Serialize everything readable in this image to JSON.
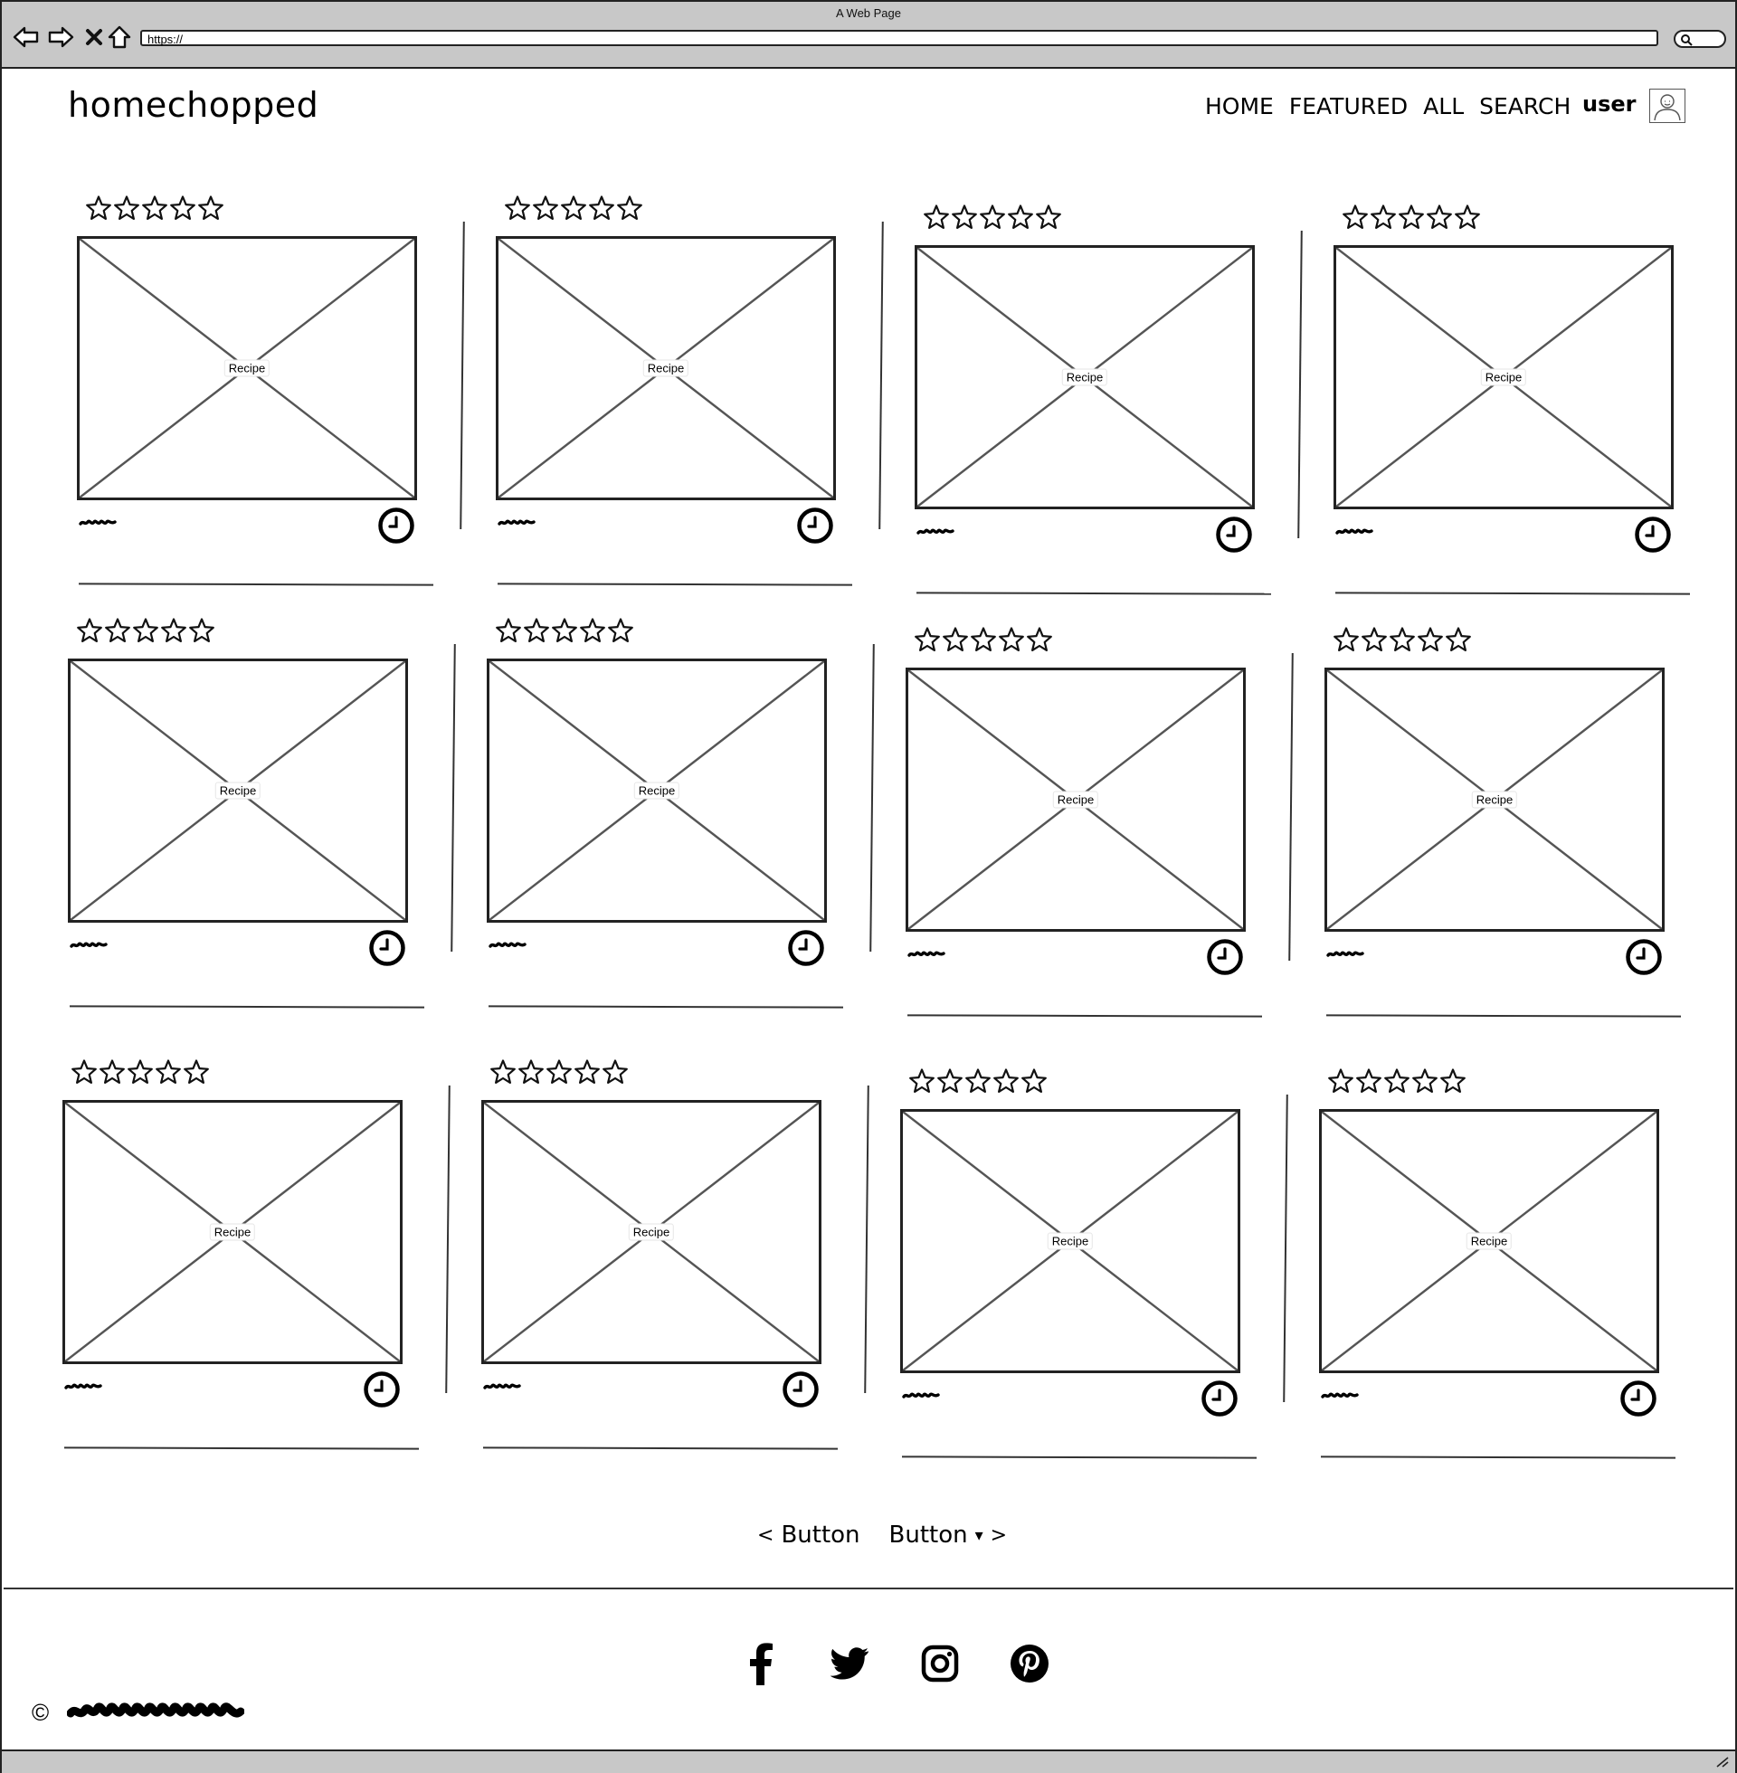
{
  "window": {
    "title": "A Web Page",
    "url": "https://"
  },
  "brand": {
    "name": "homechopped"
  },
  "nav": {
    "items": [
      "HOME",
      "FEATURED",
      "ALL",
      "SEARCH"
    ],
    "user": "user"
  },
  "recipes": [
    {
      "label": "Recipe",
      "rating": 0
    },
    {
      "label": "Recipe",
      "rating": 0
    },
    {
      "label": "Recipe",
      "rating": 0
    },
    {
      "label": "Recipe",
      "rating": 0
    },
    {
      "label": "Recipe",
      "rating": 0
    },
    {
      "label": "Recipe",
      "rating": 0
    },
    {
      "label": "Recipe",
      "rating": 0
    },
    {
      "label": "Recipe",
      "rating": 0
    },
    {
      "label": "Recipe",
      "rating": 0
    },
    {
      "label": "Recipe",
      "rating": 0
    },
    {
      "label": "Recipe",
      "rating": 0
    },
    {
      "label": "Recipe",
      "rating": 0
    }
  ],
  "pager": {
    "prev_label": "Button",
    "next_label": "Button",
    "prev_symbol": "<",
    "next_symbol": ">",
    "dropdown_symbol": "▾"
  },
  "footer": {
    "social": [
      "facebook-icon",
      "twitter-icon",
      "instagram-icon",
      "pinterest-icon"
    ],
    "copyright_symbol": "©"
  }
}
